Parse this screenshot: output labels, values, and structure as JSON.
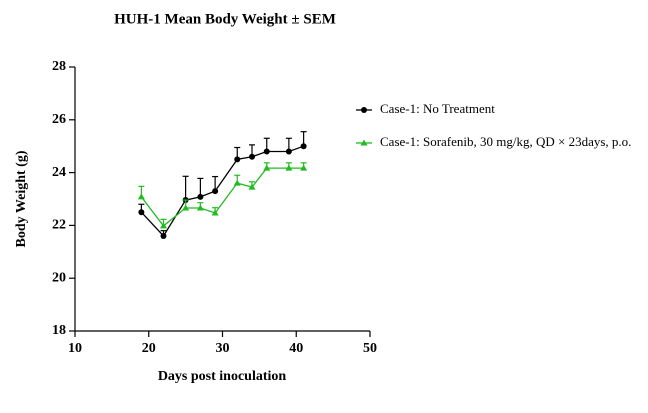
{
  "chart_data": {
    "type": "line",
    "title": "HUH-1 Mean Body Weight ± SEM",
    "x_label": "Days post inoculation",
    "y_label": "Body Weight (g)",
    "xlim": [
      10,
      50
    ],
    "xticks": [
      10,
      20,
      30,
      40,
      50
    ],
    "ylim": [
      18,
      28
    ],
    "yticks": [
      18,
      20,
      22,
      24,
      26,
      28
    ],
    "legend": "right",
    "x": [
      19,
      22,
      25,
      27,
      29,
      32,
      34,
      36,
      39,
      41
    ],
    "series": [
      {
        "name": "Case-1: No Treatment",
        "color": "#000000",
        "marker": "circle",
        "values": [
          22.5,
          21.6,
          22.96,
          23.08,
          23.3,
          24.5,
          24.6,
          24.8,
          24.8,
          25.0
        ],
        "errors": [
          0.3,
          0.2,
          0.9,
          0.7,
          0.55,
          0.45,
          0.45,
          0.5,
          0.5,
          0.55
        ]
      },
      {
        "name": "Case-1: Sorafenib, 30 mg/kg, QD × 23days, p.o.",
        "color": "#22bb22",
        "marker": "triangle",
        "values": [
          23.08,
          21.98,
          22.66,
          22.66,
          22.47,
          23.6,
          23.45,
          24.17,
          24.17,
          24.17
        ],
        "errors": [
          0.4,
          0.25,
          0.3,
          0.2,
          0.2,
          0.3,
          0.2,
          0.2,
          0.2,
          0.2
        ]
      }
    ]
  }
}
